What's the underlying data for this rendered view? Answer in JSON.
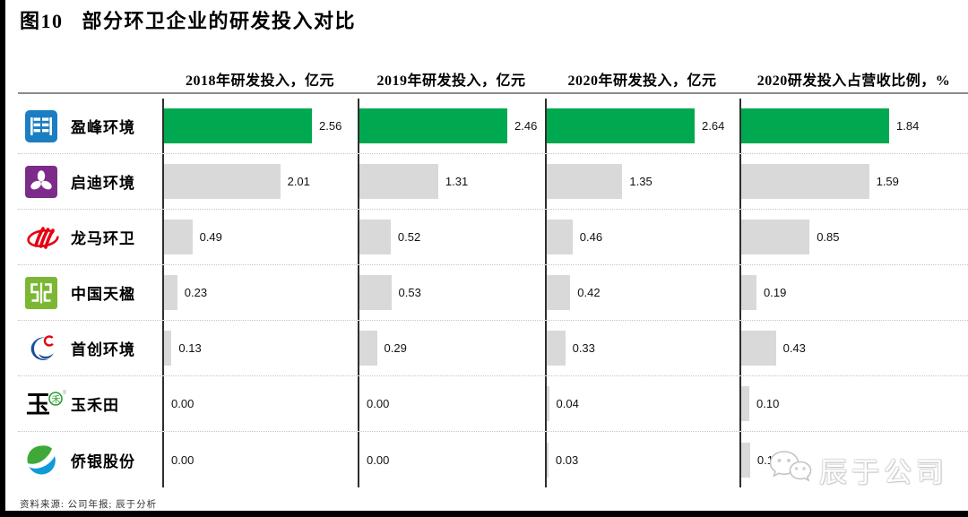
{
  "figure": {
    "title": "图10   部分环卫企业的研发投入对比",
    "source_note": "资料来源: 公司年报; 辰于分析"
  },
  "columns": [
    {
      "header": "2018年研发投入，亿元"
    },
    {
      "header": "2019年研发投入，亿元"
    },
    {
      "header": "2020年研发投入，亿元"
    },
    {
      "header": "2020研发投入占营收比例，%"
    }
  ],
  "companies": [
    {
      "name": "盈峰环境",
      "logo": "yingfeng-environment-logo",
      "highlight": true,
      "values": [
        "2.56",
        "2.46",
        "2.64",
        "1.84"
      ]
    },
    {
      "name": "启迪环境",
      "logo": "qidi-environment-logo",
      "highlight": false,
      "values": [
        "2.01",
        "1.31",
        "1.35",
        "1.59"
      ]
    },
    {
      "name": "龙马环卫",
      "logo": "longma-sanitation-logo",
      "highlight": false,
      "values": [
        "0.49",
        "0.52",
        "0.46",
        "0.85"
      ]
    },
    {
      "name": "中国天楹",
      "logo": "china-tianying-logo",
      "highlight": false,
      "values": [
        "0.23",
        "0.53",
        "0.42",
        "0.19"
      ]
    },
    {
      "name": "首创环境",
      "logo": "capital-environment-logo",
      "highlight": false,
      "values": [
        "0.13",
        "0.29",
        "0.33",
        "0.43"
      ]
    },
    {
      "name": "玉禾田",
      "logo": "yuhetian-logo",
      "highlight": false,
      "values": [
        "0.00",
        "0.00",
        "0.04",
        "0.10"
      ]
    },
    {
      "name": "侨银股份",
      "logo": "qiaoyin-shares-logo",
      "highlight": false,
      "values": [
        "0.00",
        "0.00",
        "0.03",
        "0.11"
      ]
    }
  ],
  "watermark": {
    "icon": "wechat-icon",
    "text": "辰于公司"
  },
  "colors": {
    "highlight_bar": "#00A94F",
    "default_bar": "#D9D9D9",
    "axis_line": "#2e2e2e",
    "header_rule": "#8a8a8a"
  },
  "chart_data": {
    "type": "bar",
    "orientation": "horizontal",
    "title": "图10 部分环卫企业的研发投入对比",
    "categories": [
      "盈峰环境",
      "启迪环境",
      "龙马环卫",
      "中国天楹",
      "首创环境",
      "玉禾田",
      "侨银股份"
    ],
    "series": [
      {
        "name": "2018年研发投入，亿元",
        "values": [
          2.56,
          2.01,
          0.49,
          0.23,
          0.13,
          0.0,
          0.0
        ]
      },
      {
        "name": "2019年研发投入，亿元",
        "values": [
          2.46,
          1.31,
          0.52,
          0.53,
          0.29,
          0.0,
          0.0
        ]
      },
      {
        "name": "2020年研发投入，亿元",
        "values": [
          2.64,
          1.35,
          0.46,
          0.42,
          0.33,
          0.04,
          0.03
        ]
      },
      {
        "name": "2020研发投入占营收比例，%",
        "values": [
          1.84,
          1.59,
          0.85,
          0.19,
          0.43,
          0.1,
          0.11
        ]
      }
    ],
    "highlight_category": "盈峰环境",
    "highlight_color": "#00A94F",
    "bar_color": "#D9D9D9",
    "value_labels": true,
    "per_column_scaling": true,
    "grid": "dotted-row-separators",
    "legend_position": "none",
    "source_note": "资料来源: 公司年报; 辰于分析"
  }
}
